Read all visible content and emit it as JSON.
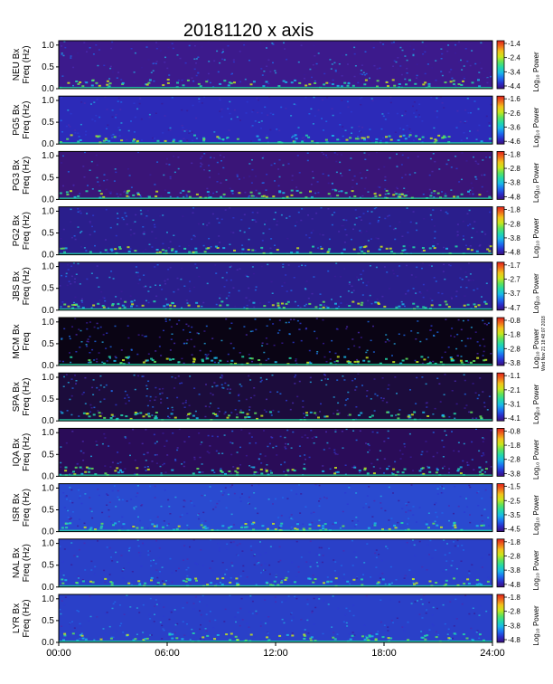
{
  "title": "20181120  x axis",
  "side_note": "Wed Nov 21 18:48:07 2018",
  "x_ticks": [
    "00:00",
    "06:00",
    "12:00",
    "18:00",
    "24:00"
  ],
  "y_ticks": [
    "0.0",
    "0.5",
    "1.0"
  ],
  "colors": {
    "colormap": [
      "#3a0e7a",
      "#2a2cc8",
      "#1c6cf0",
      "#19b8e8",
      "#22d8a8",
      "#5ee25a",
      "#c8e61c",
      "#f2c21a",
      "#f06a1a",
      "#e0201c"
    ]
  },
  "chart_data": [
    {
      "type": "heatmap",
      "station": "NEU",
      "ylabel_station": "NEU Bx",
      "ylabel_freq": "Freq (Hz)",
      "colorbar_label": "Log₁₀ Power",
      "colorbar_ticks": [
        "-1.4",
        "-2.4",
        "-3.4",
        "-4.4"
      ],
      "xlim": [
        "00:00",
        "24:00"
      ],
      "ylim": [
        0.0,
        1.1
      ],
      "background": "#3c1a8c"
    },
    {
      "type": "heatmap",
      "station": "PG5",
      "ylabel_station": "PG5 Bx",
      "ylabel_freq": "Freq (Hz)",
      "colorbar_label": "Log₁₀ Power",
      "colorbar_ticks": [
        "-1.6",
        "-2.6",
        "-3.6",
        "-4.6"
      ],
      "xlim": [
        "00:00",
        "24:00"
      ],
      "ylim": [
        0.0,
        1.1
      ],
      "background": "#2c2ab8"
    },
    {
      "type": "heatmap",
      "station": "PG3",
      "ylabel_station": "PG3 Bx",
      "ylabel_freq": "Freq (Hz)",
      "colorbar_label": "Log₁₀ Power",
      "colorbar_ticks": [
        "-1.8",
        "-2.8",
        "-3.8",
        "-4.8"
      ],
      "xlim": [
        "00:00",
        "24:00"
      ],
      "ylim": [
        0.0,
        1.1
      ],
      "background": "#3a1578"
    },
    {
      "type": "heatmap",
      "station": "PG2",
      "ylabel_station": "PG2 Bx",
      "ylabel_freq": "Freq (Hz)",
      "colorbar_label": "Log₁₀ Power",
      "colorbar_ticks": [
        "-1.8",
        "-2.8",
        "-3.8",
        "-4.8"
      ],
      "xlim": [
        "00:00",
        "24:00"
      ],
      "ylim": [
        0.0,
        1.1
      ],
      "background": "#2a1e8c"
    },
    {
      "type": "heatmap",
      "station": "JBS",
      "ylabel_station": "JBS Bx",
      "ylabel_freq": "Freq (Hz)",
      "colorbar_label": "Log₁₀ Power",
      "colorbar_ticks": [
        "-1.7",
        "-2.7",
        "-3.7",
        "-4.7"
      ],
      "xlim": [
        "00:00",
        "24:00"
      ],
      "ylim": [
        0.0,
        1.1
      ],
      "background": "#2a1e8c"
    },
    {
      "type": "heatmap",
      "station": "MCM",
      "ylabel_station": "MCM Bx",
      "ylabel_freq": "Freq",
      "colorbar_label": "Log₁₀ Power",
      "colorbar_ticks": [
        "-0.8",
        "-1.8",
        "-2.8",
        "-3.8"
      ],
      "xlim": [
        "00:00",
        "24:00"
      ],
      "ylim": [
        0.0,
        1.1
      ],
      "background": "#0a0414"
    },
    {
      "type": "heatmap",
      "station": "SPA",
      "ylabel_station": "SPA Bx",
      "ylabel_freq": "Freq (Hz)",
      "colorbar_label": "Log₁₀ Power",
      "colorbar_ticks": [
        "-1.1",
        "-2.1",
        "-3.1",
        "-4.1"
      ],
      "xlim": [
        "00:00",
        "24:00"
      ],
      "ylim": [
        0.0,
        1.1
      ],
      "background": "#1c0c3c"
    },
    {
      "type": "heatmap",
      "station": "IQA",
      "ylabel_station": "IQA Bx",
      "ylabel_freq": "Freq (Hz)",
      "colorbar_label": "Log₁₀ Power",
      "colorbar_ticks": [
        "-0.8",
        "-1.8",
        "-2.8",
        "-3.8"
      ],
      "xlim": [
        "00:00",
        "24:00"
      ],
      "ylim": [
        0.0,
        1.1
      ],
      "background": "#2a0c58"
    },
    {
      "type": "heatmap",
      "station": "ISR",
      "ylabel_station": "ISR Bx",
      "ylabel_freq": "Freq (Hz)",
      "colorbar_label": "Log₁₀ Power",
      "colorbar_ticks": [
        "-1.5",
        "-2.5",
        "-3.5",
        "-4.5"
      ],
      "xlim": [
        "00:00",
        "24:00"
      ],
      "ylim": [
        0.0,
        1.1
      ],
      "background": "#2a4ad0"
    },
    {
      "type": "heatmap",
      "station": "NAL",
      "ylabel_station": "NAL Bx",
      "ylabel_freq": "Freq (Hz)",
      "colorbar_label": "Log₁₀ Power",
      "colorbar_ticks": [
        "-1.8",
        "-2.8",
        "-3.8",
        "-4.8"
      ],
      "xlim": [
        "00:00",
        "24:00"
      ],
      "ylim": [
        0.0,
        1.1
      ],
      "background": "#2a40c8"
    },
    {
      "type": "heatmap",
      "station": "LYR",
      "ylabel_station": "LYR Bx",
      "ylabel_freq": "Freq (Hz)",
      "colorbar_label": "Log₁₀ Power",
      "colorbar_ticks": [
        "-1.8",
        "-2.8",
        "-3.8",
        "-4.8"
      ],
      "xlim": [
        "00:00",
        "24:00"
      ],
      "ylim": [
        0.0,
        1.1
      ],
      "background": "#2a40c8"
    }
  ]
}
